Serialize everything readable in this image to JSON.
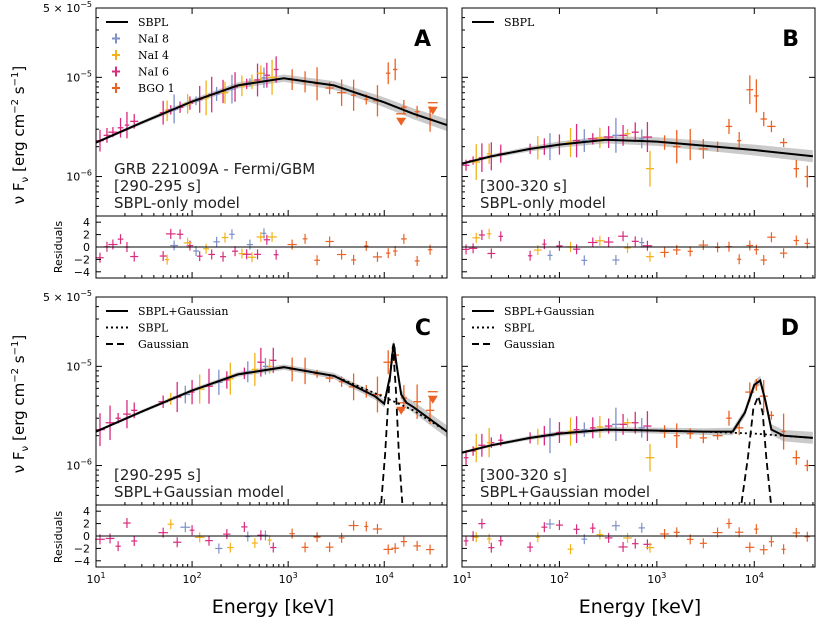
{
  "figure": {
    "xlabel": "Energy [keV]",
    "ylabel_flux": "ν F",
    "ylabel_sub": "ν",
    "ylabel_units": "[erg cm",
    "ylabel_exp1": "−2",
    "ylabel_mid": " s",
    "ylabel_exp2": "−1",
    "ylabel_close": "]",
    "residual_label": "Residuals"
  },
  "colors": {
    "model": "#000000",
    "nai8": "#7f8fc8",
    "nai4": "#f3b21a",
    "nai6": "#d92b7e",
    "bgo1": "#ec6223",
    "band": "#bdbdbd"
  },
  "tick_labels": {
    "x": [
      {
        "base": "10",
        "exp": "1"
      },
      {
        "base": "10",
        "exp": "2"
      },
      {
        "base": "10",
        "exp": "3"
      },
      {
        "base": "10",
        "exp": "4"
      }
    ],
    "y_top": {
      "base": "5 × 10",
      "exp": "−5"
    },
    "y_mid": {
      "base": "10",
      "exp": "−5"
    },
    "y_low": {
      "base": "10",
      "exp": "−6"
    },
    "residual": [
      "4",
      "2",
      "0",
      "−2",
      "−4"
    ]
  },
  "chart_data": [
    {
      "panel": "A",
      "type": "line",
      "title_lines": [
        "GRB 221009A - Fermi/GBM",
        "[290-295 s]",
        "SBPL-only model"
      ],
      "legend": [
        "SBPL",
        "NaI 8",
        "NaI 4",
        "NaI 6",
        "BGO 1"
      ],
      "xscale": "log",
      "yscale": "log",
      "xlim": [
        10,
        45000
      ],
      "ylim": [
        4e-07,
        5e-05
      ],
      "residual_ylim": [
        -5,
        5
      ],
      "series": [
        {
          "name": "SBPL",
          "x": [
            10,
            30,
            100,
            300,
            900,
            3000,
            10000,
            20000,
            45000
          ],
          "y": [
            2.2e-06,
            3.5e-06,
            5.7e-06,
            8.3e-06,
            9.8e-06,
            8.3e-06,
            5.6e-06,
            4.3e-06,
            3.3e-06
          ]
        }
      ],
      "data_points": [
        {
          "det": "NaI 6",
          "x": [
            11,
            13,
            15,
            18,
            21,
            25,
            50,
            60,
            75,
            95,
            120,
            160,
            210,
            280,
            370,
            480,
            600,
            750
          ],
          "y": [
            2.3e-06,
            2.6e-06,
            2.8e-06,
            3.1e-06,
            3.3e-06,
            3.6e-06,
            4.4e-06,
            4.7e-06,
            5e-06,
            5.5e-06,
            6e-06,
            6.7e-06,
            7.2e-06,
            8e-06,
            8.6e-06,
            9.4e-06,
            1.05e-05,
            1.2e-05
          ]
        },
        {
          "det": "NaI 4",
          "x": [
            55,
            90,
            140,
            220,
            330,
            420,
            520,
            680
          ],
          "y": [
            4.6e-06,
            5.4e-06,
            6.2e-06,
            7e-06,
            8.2e-06,
            9e-06,
            1.1e-05,
            1e-05
          ]
        },
        {
          "det": "NaI 8",
          "x": [
            65,
            110,
            180,
            260,
            400,
            560
          ],
          "y": [
            4.8e-06,
            5.8e-06,
            6.8e-06,
            7.6e-06,
            8.9e-06,
            9.9e-06
          ]
        },
        {
          "det": "BGO 1",
          "x": [
            1100,
            1500,
            2000,
            2700,
            3600,
            4800,
            6500,
            8500,
            11000,
            13000,
            16000,
            22000,
            30000
          ],
          "y": [
            9.5e-06,
            9e-06,
            8.6e-06,
            7.8e-06,
            7e-06,
            6.6e-06,
            6e-06,
            5.8e-06,
            1.1e-05,
            1.2e-05,
            5e-06,
            4.5e-06,
            3.8e-06
          ]
        }
      ],
      "upper_limits": {
        "x": [
          15000,
          32000
        ],
        "y": [
          3.4e-06,
          4.4e-06
        ]
      }
    },
    {
      "panel": "B",
      "type": "line",
      "title_lines": [
        "[300-320 s]",
        "SBPL-only model"
      ],
      "legend": [
        "SBPL"
      ],
      "xscale": "log",
      "yscale": "log",
      "xlim": [
        10,
        42000
      ],
      "ylim": [
        4e-07,
        5e-05
      ],
      "residual_ylim": [
        -5,
        5
      ],
      "series": [
        {
          "name": "SBPL",
          "x": [
            10,
            20,
            50,
            100,
            300,
            1000,
            3000,
            10000,
            40000
          ],
          "y": [
            1.35e-06,
            1.6e-06,
            1.9e-06,
            2.1e-06,
            2.35e-06,
            2.25e-06,
            2.05e-06,
            1.85e-06,
            1.6e-06
          ]
        }
      ],
      "data_points": [
        {
          "det": "NaI 6",
          "x": [
            11,
            13,
            16,
            20,
            25,
            50,
            70,
            100,
            150,
            220,
            320,
            450,
            600,
            800
          ],
          "y": [
            1.3e-06,
            1.45e-06,
            1.55e-06,
            1.6e-06,
            1.7e-06,
            1.9e-06,
            2e-06,
            2.1e-06,
            2.3e-06,
            2.4e-06,
            2.5e-06,
            2.6e-06,
            2.8e-06,
            2.5e-06
          ]
        },
        {
          "det": "NaI 4",
          "x": [
            14,
            19,
            60,
            130,
            260,
            500,
            850
          ],
          "y": [
            1.4e-06,
            1.7e-06,
            1.95e-06,
            2.2e-06,
            2.45e-06,
            2.7e-06,
            1.2e-06
          ]
        },
        {
          "det": "NaI 8",
          "x": [
            80,
            180,
            380,
            700
          ],
          "y": [
            2e-06,
            2.3e-06,
            2.6e-06,
            2.4e-06
          ]
        },
        {
          "det": "BGO 1",
          "x": [
            1200,
            1600,
            2200,
            3000,
            4200,
            5500,
            7000,
            9000,
            10500,
            12500,
            15000,
            20000,
            27000,
            35000
          ],
          "y": [
            2.2e-06,
            2e-06,
            2.1e-06,
            1.9e-06,
            2e-06,
            3.2e-06,
            2.3e-06,
            7.5e-06,
            6.5e-06,
            3.8e-06,
            3.2e-06,
            2.2e-06,
            1.2e-06,
            1e-06
          ]
        }
      ],
      "upper_limits": {
        "x": [],
        "y": []
      }
    },
    {
      "panel": "C",
      "type": "line",
      "title_lines": [
        "[290-295 s]",
        "SBPL+Gaussian model"
      ],
      "legend": [
        "SBPL+Gaussian",
        "SBPL",
        "Gaussian"
      ],
      "xscale": "log",
      "yscale": "log",
      "xlim": [
        10,
        45000
      ],
      "ylim": [
        4e-07,
        5e-05
      ],
      "residual_ylim": [
        -5,
        5
      ],
      "series": [
        {
          "name": "SBPL+Gaussian",
          "x": [
            10,
            30,
            100,
            300,
            900,
            3000,
            8000,
            10000,
            11500,
            12500,
            13500,
            15000,
            17000,
            20000,
            45000
          ],
          "y": [
            2.2e-06,
            3.5e-06,
            5.7e-06,
            8.3e-06,
            9.8e-06,
            8e-06,
            5e-06,
            4.2e-06,
            8e-06,
            1.7e-05,
            1e-05,
            5.2e-06,
            4.3e-06,
            3.9e-06,
            2.2e-06
          ]
        },
        {
          "name": "SBPL",
          "x": [
            10,
            30,
            100,
            300,
            900,
            3000,
            10000,
            20000,
            45000
          ],
          "y": [
            2.2e-06,
            3.5e-06,
            5.7e-06,
            8.3e-06,
            9.8e-06,
            8e-06,
            4.9e-06,
            3.6e-06,
            2.2e-06
          ]
        },
        {
          "name": "Gaussian",
          "x": [
            9300,
            10200,
            11200,
            12300,
            13200,
            14200,
            15400
          ],
          "y": [
            4.2e-07,
            1.3e-06,
            6e-06,
            1.6e-05,
            6e-06,
            1.3e-06,
            4.2e-07
          ]
        }
      ],
      "data_points": [
        {
          "det": "NaI 6",
          "x": [
            11,
            14,
            17,
            21,
            25,
            50,
            70,
            100,
            150,
            230,
            350,
            520,
            700
          ],
          "y": [
            2.3e-06,
            2.7e-06,
            3e-06,
            3.3e-06,
            3.6e-06,
            4.4e-06,
            4.9e-06,
            5.5e-06,
            6.3e-06,
            7.3e-06,
            8.5e-06,
            1.1e-05,
            1.15e-05
          ]
        },
        {
          "det": "NaI 4",
          "x": [
            60,
            120,
            250,
            450,
            640
          ],
          "y": [
            4.7e-06,
            5.9e-06,
            7.5e-06,
            9.3e-06,
            1e-05
          ]
        },
        {
          "det": "NaI 8",
          "x": [
            85,
            190,
            380,
            580
          ],
          "y": [
            5.2e-06,
            6.9e-06,
            8.8e-06,
            1e-05
          ]
        },
        {
          "det": "BGO 1",
          "x": [
            1100,
            1500,
            2000,
            2700,
            3600,
            4800,
            6500,
            8500,
            11000,
            13000,
            16000,
            22000,
            30000
          ],
          "y": [
            9.3e-06,
            9e-06,
            8.4e-06,
            7.6e-06,
            7e-06,
            6.2e-06,
            5.6e-06,
            5.2e-06,
            1.1e-05,
            1.3e-05,
            4.8e-06,
            4.4e-06,
            3.6e-06
          ]
        }
      ],
      "upper_limits": {
        "x": [
          15000,
          32000
        ],
        "y": [
          3.4e-06,
          4.4e-06
        ]
      }
    },
    {
      "panel": "D",
      "type": "line",
      "title_lines": [
        "[300-320 s]",
        "SBPL+Gaussian model"
      ],
      "legend": [
        "SBPL+Gaussian",
        "SBPL",
        "Gaussian"
      ],
      "xscale": "log",
      "yscale": "log",
      "xlim": [
        10,
        42000
      ],
      "ylim": [
        4e-07,
        5e-05
      ],
      "residual_ylim": [
        -5,
        5
      ],
      "series": [
        {
          "name": "SBPL+Gaussian",
          "x": [
            10,
            20,
            50,
            100,
            300,
            1000,
            3000,
            6000,
            8000,
            10000,
            11500,
            13000,
            15000,
            20000,
            40000
          ],
          "y": [
            1.35e-06,
            1.6e-06,
            1.9e-06,
            2.1e-06,
            2.3e-06,
            2.25e-06,
            2.2e-06,
            2.2e-06,
            3.4e-06,
            6.5e-06,
            7.2e-06,
            4.5e-06,
            2.3e-06,
            2e-06,
            1.9e-06
          ]
        },
        {
          "name": "SBPL",
          "x": [
            10,
            20,
            50,
            100,
            300,
            1000,
            3000,
            10000,
            40000
          ],
          "y": [
            1.35e-06,
            1.6e-06,
            1.9e-06,
            2.1e-06,
            2.3e-06,
            2.25e-06,
            2.2e-06,
            2.1e-06,
            1.9e-06
          ]
        },
        {
          "name": "Gaussian",
          "x": [
            7400,
            8600,
            9800,
            11000,
            12200,
            13300,
            14800
          ],
          "y": [
            4.2e-07,
            1.2e-06,
            3.8e-06,
            5e-06,
            3.4e-06,
            1.2e-06,
            4.2e-07
          ]
        }
      ],
      "data_points": [
        {
          "det": "NaI 6",
          "x": [
            11,
            13,
            16,
            20,
            25,
            50,
            70,
            100,
            150,
            220,
            320,
            450,
            600,
            800
          ],
          "y": [
            1.2e-06,
            1.4e-06,
            1.6e-06,
            1.7e-06,
            1.8e-06,
            1.9e-06,
            2e-06,
            2.15e-06,
            2.3e-06,
            2.4e-06,
            2.5e-06,
            2.6e-06,
            2.7e-06,
            2.5e-06
          ]
        },
        {
          "det": "NaI 4",
          "x": [
            14,
            19,
            60,
            130,
            260,
            500,
            850
          ],
          "y": [
            1.5e-06,
            1.7e-06,
            1.95e-06,
            2.2e-06,
            2.45e-06,
            2.7e-06,
            1.2e-06
          ]
        },
        {
          "det": "NaI 8",
          "x": [
            80,
            180,
            380,
            700
          ],
          "y": [
            2e-06,
            2.3e-06,
            2.6e-06,
            2.4e-06
          ]
        },
        {
          "det": "BGO 1",
          "x": [
            1200,
            1600,
            2200,
            3000,
            4200,
            5500,
            7000,
            9000,
            10500,
            12500,
            15000,
            20000,
            27000,
            35000
          ],
          "y": [
            2.2e-06,
            2e-06,
            2.1e-06,
            1.9e-06,
            2e-06,
            3e-06,
            2.4e-06,
            5.5e-06,
            6.5e-06,
            5e-06,
            3.2e-06,
            2.2e-06,
            1.2e-06,
            1e-06
          ]
        }
      ],
      "upper_limits": {
        "x": [],
        "y": []
      }
    }
  ]
}
